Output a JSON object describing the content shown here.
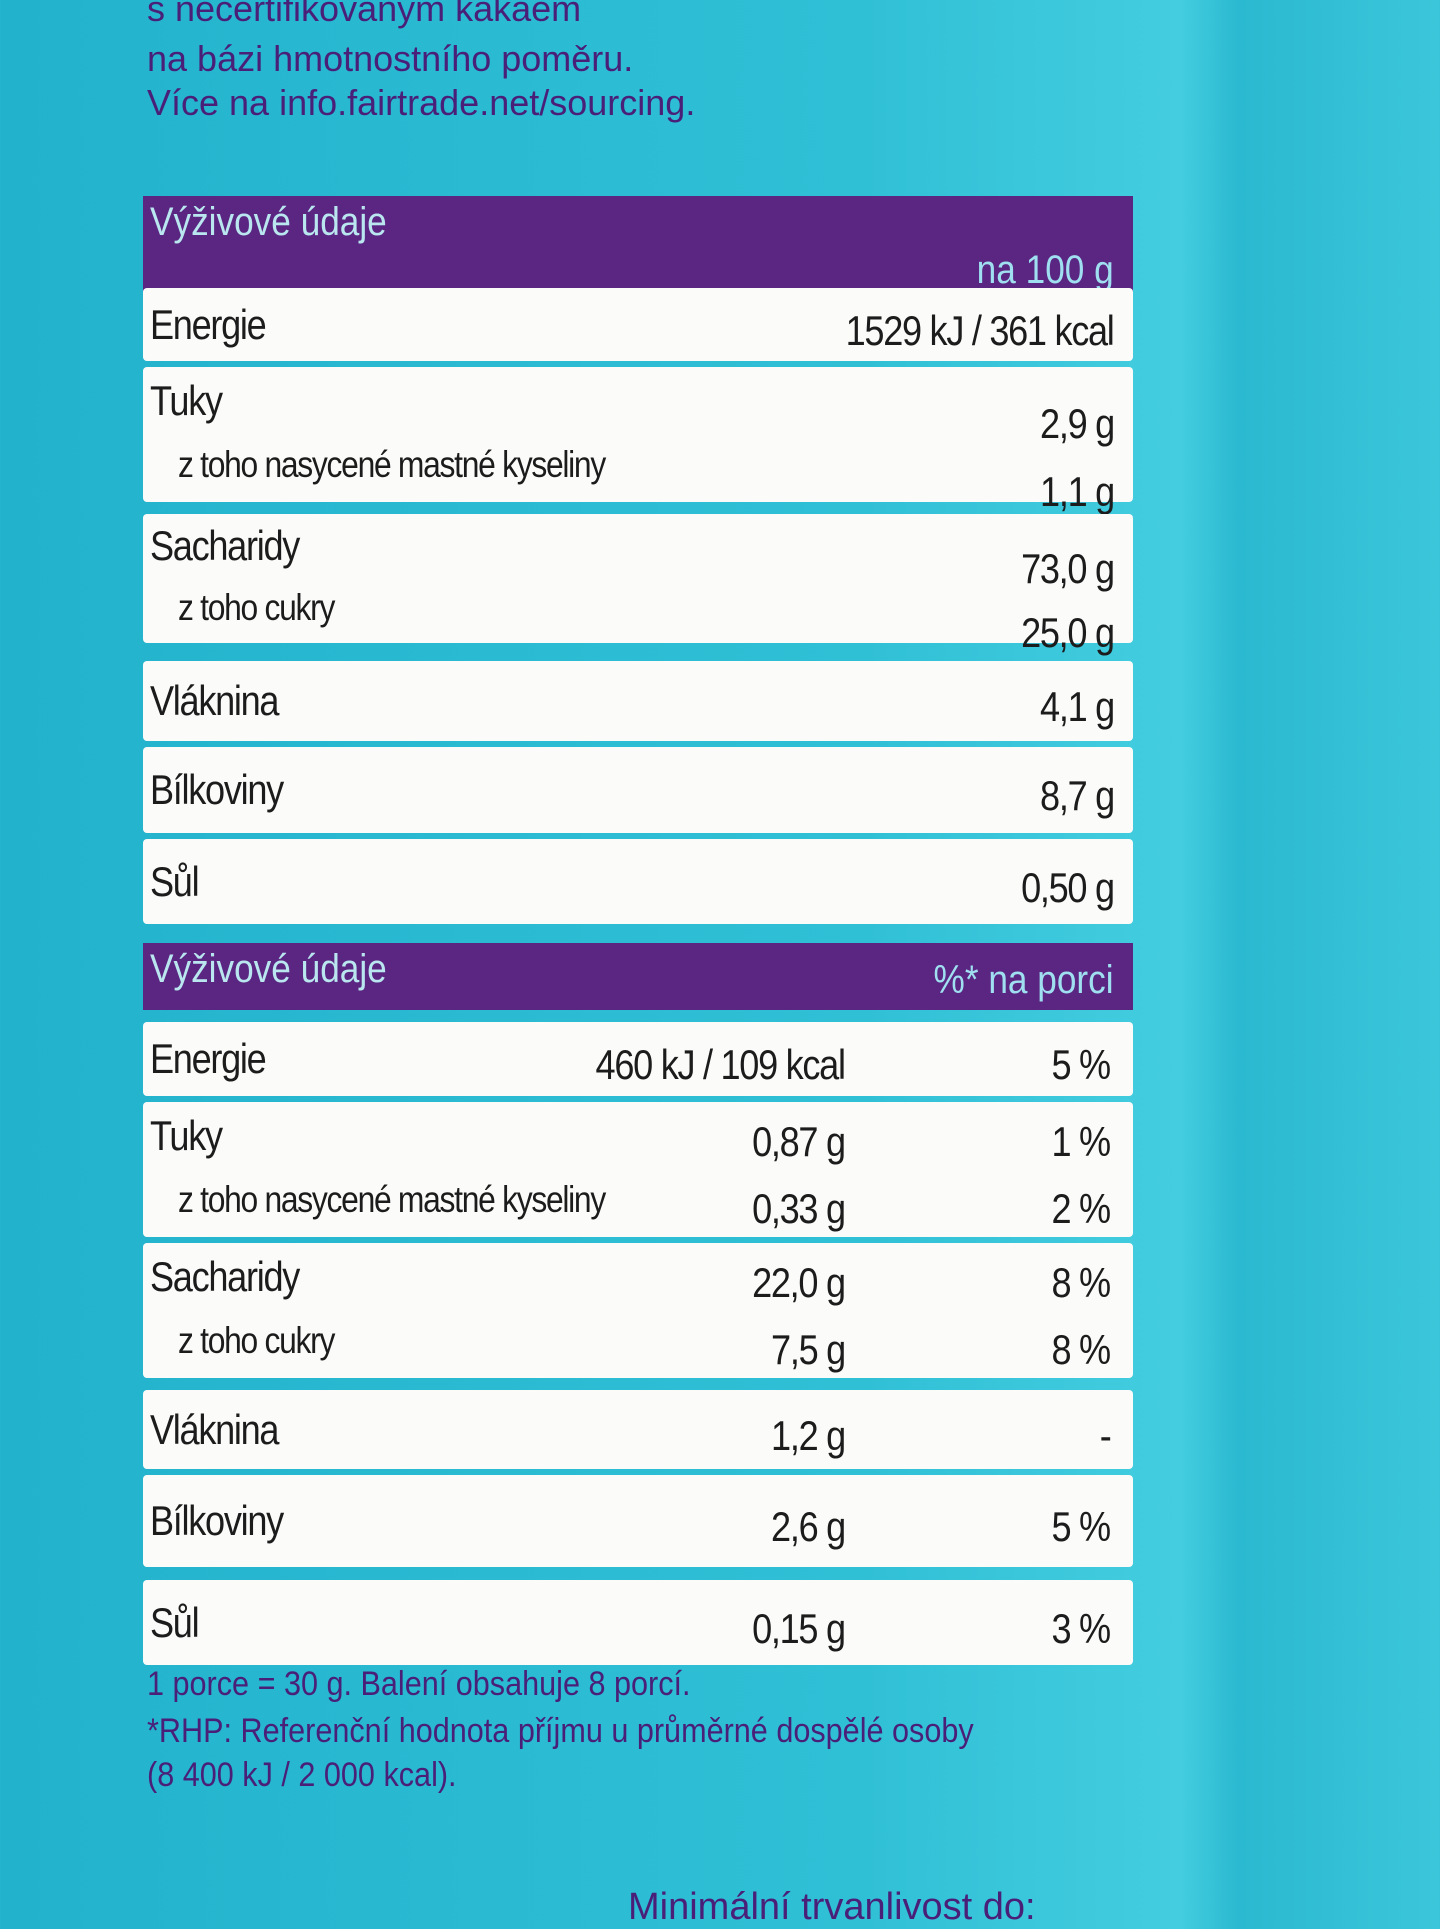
{
  "intro": [
    "s necertifikovaným kakaem",
    "na bázi hmotnostního poměru.",
    "Více na info.fairtrade.net/sourcing."
  ],
  "table_per_100g": {
    "header": {
      "title": "Výživové údaje",
      "column": "na 100 g"
    },
    "groups": [
      [
        {
          "label": "Energie",
          "value": "1529 kJ / 361 kcal"
        }
      ],
      [
        {
          "label": "Tuky",
          "value": "2,9 g"
        },
        {
          "label": "z toho nasycené mastné kyseliny",
          "value": "1,1 g"
        }
      ],
      [
        {
          "label": "Sacharidy",
          "value": "73,0 g"
        },
        {
          "label": "z toho cukry",
          "value": "25,0 g"
        }
      ],
      [
        {
          "label": "Vláknina",
          "value": "4,1 g"
        }
      ],
      [
        {
          "label": "Bílkoviny",
          "value": "8,7 g"
        }
      ],
      [
        {
          "label": "Sůl",
          "value": "0,50 g"
        }
      ]
    ]
  },
  "table_per_portion": {
    "header": {
      "title": "Výživové údaje",
      "column": "%* na porci"
    },
    "groups": [
      [
        {
          "label": "Energie",
          "value": "460 kJ / 109 kcal",
          "percent": "5 %"
        }
      ],
      [
        {
          "label": "Tuky",
          "value": "0,87 g",
          "percent": "1 %"
        },
        {
          "label": "z toho nasycené mastné kyseliny",
          "value": "0,33 g",
          "percent": "2 %"
        }
      ],
      [
        {
          "label": "Sacharidy",
          "value": "22,0 g",
          "percent": "8 %"
        },
        {
          "label": "z toho cukry",
          "value": "7,5 g",
          "percent": "8 %"
        }
      ],
      [
        {
          "label": "Vláknina",
          "value": "1,2 g",
          "percent": "-"
        }
      ],
      [
        {
          "label": "Bílkoviny",
          "value": "2,6 g",
          "percent": "5 %"
        }
      ],
      [
        {
          "label": "Sůl",
          "value": "0,15 g",
          "percent": "3 %"
        }
      ]
    ]
  },
  "footnotes": [
    "1 porce = 30 g. Balení obsahuje 8 porcí.",
    "*RHP: Referenční hodnota příjmu u průměrné dospělé osoby",
    "(8 400 kJ / 2 000 kcal)."
  ],
  "bottom_text": "Minimální trvanlivost do:"
}
